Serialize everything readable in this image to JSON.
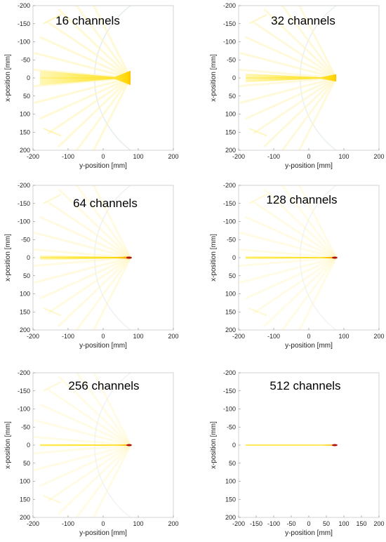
{
  "chart_data": [
    {
      "type": "heatmap",
      "title": "16 channels",
      "xlabel": "y-position [mm]",
      "ylabel": "x-position [mm]",
      "xlim": [
        -200,
        200
      ],
      "ylim": [
        -200,
        200
      ],
      "y_axis_direction": "reversed",
      "x_ticks": [
        "-200",
        "-100",
        "0",
        "100",
        "200"
      ],
      "y_ticks": [
        "-200",
        "-150",
        "-100",
        "-50",
        "0",
        "50",
        "100",
        "150",
        "200"
      ],
      "colormap": [
        "#ffffff",
        "#fff9c4",
        "#ffe600",
        "#ff8c00",
        "#cc0000"
      ],
      "beam": {
        "y_start": -180,
        "y_end": 78,
        "x_center": 0,
        "half_width_far": 20,
        "half_width_near": 3,
        "half_width_end": 20,
        "peak_intensity": 0.4
      },
      "artifact_intensity": 0.08
    },
    {
      "type": "heatmap",
      "title": "32 channels",
      "xlabel": "y-position [mm]",
      "ylabel": "x-position [mm]",
      "xlim": [
        -200,
        200
      ],
      "ylim": [
        -200,
        200
      ],
      "y_axis_direction": "reversed",
      "x_ticks": [
        "-200",
        "-100",
        "0",
        "100",
        "200"
      ],
      "y_ticks": [
        "-200",
        "-150",
        "-100",
        "-50",
        "0",
        "50",
        "100",
        "150",
        "200"
      ],
      "colormap": [
        "#ffffff",
        "#fff9c4",
        "#ffe600",
        "#ff8c00",
        "#cc0000"
      ],
      "beam": {
        "y_start": -180,
        "y_end": 78,
        "x_center": 0,
        "half_width_far": 12,
        "half_width_near": 2,
        "half_width_end": 10,
        "peak_intensity": 0.55
      },
      "artifact_intensity": 0.07
    },
    {
      "type": "heatmap",
      "title": "64 channels",
      "xlabel": "y-position [mm]",
      "ylabel": "x-position [mm]",
      "xlim": [
        -200,
        200
      ],
      "ylim": [
        -200,
        200
      ],
      "y_axis_direction": "reversed",
      "x_ticks": [
        "-200",
        "-100",
        "0",
        "100",
        "200"
      ],
      "y_ticks": [
        "-200",
        "-150",
        "-100",
        "-50",
        "0",
        "50",
        "100",
        "150",
        "200"
      ],
      "colormap": [
        "#ffffff",
        "#fff9c4",
        "#ffe600",
        "#ff8c00",
        "#cc0000"
      ],
      "beam": {
        "y_start": -180,
        "y_end": 78,
        "x_center": 0,
        "half_width_far": 6,
        "half_width_near": 2,
        "half_width_end": 3,
        "peak_intensity": 0.8
      },
      "artifact_intensity": 0.06
    },
    {
      "type": "heatmap",
      "title": "128 channels",
      "xlabel": "y-position [mm]",
      "ylabel": "x-position [mm]",
      "xlim": [
        -200,
        200
      ],
      "ylim": [
        -200,
        200
      ],
      "y_axis_direction": "reversed",
      "x_ticks": [
        "-200",
        "-100",
        "0",
        "100",
        "200"
      ],
      "y_ticks": [
        "-200",
        "-150",
        "-100",
        "-50",
        "0",
        "50",
        "100",
        "150",
        "200"
      ],
      "colormap": [
        "#ffffff",
        "#fff9c4",
        "#ffe600",
        "#ff8c00",
        "#cc0000"
      ],
      "beam": {
        "y_start": -180,
        "y_end": 78,
        "x_center": 0,
        "half_width_far": 4,
        "half_width_near": 1.5,
        "half_width_end": 2.5,
        "peak_intensity": 0.9
      },
      "artifact_intensity": 0.05
    },
    {
      "type": "heatmap",
      "title": "256 channels",
      "xlabel": "y-position [mm]",
      "ylabel": "x-position [mm]",
      "xlim": [
        -200,
        200
      ],
      "ylim": [
        -200,
        200
      ],
      "y_axis_direction": "reversed",
      "x_ticks": [
        "-200",
        "-100",
        "0",
        "100",
        "200"
      ],
      "y_ticks": [
        "-200",
        "-150",
        "-100",
        "-50",
        "0",
        "50",
        "100",
        "150",
        "200"
      ],
      "colormap": [
        "#ffffff",
        "#fff9c4",
        "#ffe600",
        "#ff8c00",
        "#cc0000"
      ],
      "beam": {
        "y_start": -180,
        "y_end": 78,
        "x_center": 0,
        "half_width_far": 3,
        "half_width_near": 1.5,
        "half_width_end": 2,
        "peak_intensity": 1.0
      },
      "artifact_intensity": 0.05
    },
    {
      "type": "heatmap",
      "title": "512 channels",
      "xlabel": "y-position [mm]",
      "ylabel": "x-position [mm]",
      "xlim": [
        -200,
        200
      ],
      "ylim": [
        -200,
        200
      ],
      "y_axis_direction": "reversed",
      "x_ticks": [
        "-200",
        "-150",
        "-100",
        "-50",
        "0",
        "50",
        "100",
        "150",
        "200"
      ],
      "y_ticks": [
        "-200",
        "-150",
        "-100",
        "-50",
        "0",
        "50",
        "100",
        "150",
        "200"
      ],
      "colormap": [
        "#ffffff",
        "#fff9c4",
        "#ffe600",
        "#ff8c00",
        "#cc0000"
      ],
      "beam": {
        "y_start": -180,
        "y_end": 78,
        "x_center": 0,
        "half_width_far": 2,
        "half_width_near": 1.2,
        "half_width_end": 1.8,
        "peak_intensity": 1.0
      },
      "artifact_intensity": 0.0
    }
  ]
}
